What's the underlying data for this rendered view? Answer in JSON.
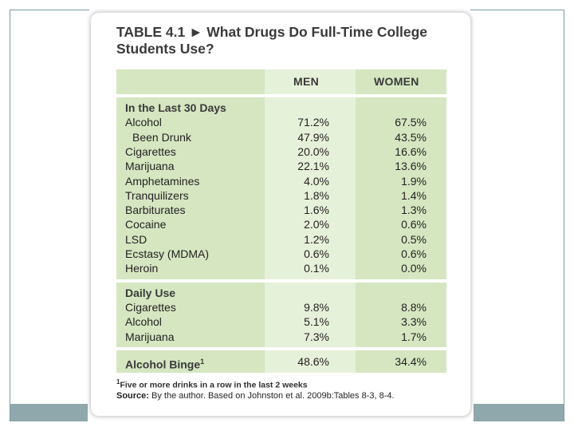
{
  "title_line1": "TABLE 4.1 ► What Drugs Do Full-Time College",
  "title_line2": "Students Use?",
  "columns": {
    "men": "MEN",
    "women": "WOMEN"
  },
  "sections": [
    {
      "heading": "In the Last 30 Days",
      "rows": [
        {
          "label": "Alcohol",
          "men": "71.2%",
          "women": "67.5%"
        },
        {
          "label": "Been Drunk",
          "men": "47.9%",
          "women": "43.5%",
          "indent": true
        },
        {
          "label": "Cigarettes",
          "men": "20.0%",
          "women": "16.6%"
        },
        {
          "label": "Marijuana",
          "men": "22.1%",
          "women": "13.6%"
        },
        {
          "label": "Amphetamines",
          "men": "4.0%",
          "women": "1.9%"
        },
        {
          "label": "Tranquilizers",
          "men": "1.8%",
          "women": "1.4%"
        },
        {
          "label": "Barbiturates",
          "men": "1.6%",
          "women": "1.3%"
        },
        {
          "label": "Cocaine",
          "men": "2.0%",
          "women": "0.6%"
        },
        {
          "label": "LSD",
          "men": "1.2%",
          "women": "0.5%"
        },
        {
          "label": "Ecstasy (MDMA)",
          "men": "0.6%",
          "women": "0.6%"
        },
        {
          "label": "Heroin",
          "men": "0.1%",
          "women": "0.0%"
        }
      ]
    },
    {
      "heading": "Daily Use",
      "rows": [
        {
          "label": "Cigarettes",
          "men": "9.8%",
          "women": "8.8%"
        },
        {
          "label": "Alcohol",
          "men": "5.1%",
          "women": "3.3%"
        },
        {
          "label": "Marijuana",
          "men": "7.3%",
          "women": "1.7%"
        }
      ]
    }
  ],
  "binge": {
    "label": "Alcohol Binge",
    "marker": "1",
    "men": "48.6%",
    "women": "34.4%"
  },
  "footnote": {
    "marker": "1",
    "text": "Five or more drinks in a row in the last 2 weeks"
  },
  "source": {
    "label": "Source:",
    "text": " By the author. Based on Johnston et al. 2009b:Tables 8-3, 8-4."
  }
}
